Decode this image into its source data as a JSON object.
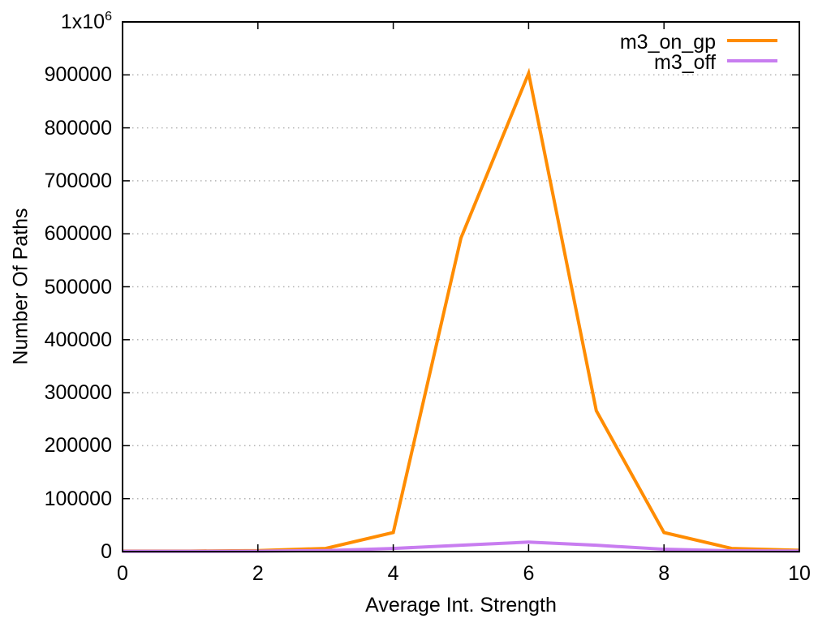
{
  "chart_data": {
    "type": "line",
    "title": "",
    "xlabel": "Average Int. Strength",
    "ylabel": "Number Of Paths",
    "xlim": [
      0,
      10
    ],
    "ylim": [
      0,
      1000000
    ],
    "grid": "horizontal-dotted",
    "legend_position": "top-right-inside",
    "x": [
      0,
      1,
      2,
      3,
      4,
      5,
      6,
      7,
      8,
      9,
      10
    ],
    "series": [
      {
        "name": "m3_on_gp",
        "color": "#ff8c00",
        "values": [
          1000,
          1000,
          2000,
          6000,
          36000,
          592000,
          903000,
          266000,
          36000,
          6000,
          2500
        ]
      },
      {
        "name": "m3_off",
        "color": "#c87df0",
        "values": [
          500,
          500,
          800,
          2000,
          6000,
          12000,
          18000,
          12000,
          4500,
          1500,
          1000
        ]
      }
    ],
    "xticks": [
      {
        "v": 0,
        "label": "0"
      },
      {
        "v": 2,
        "label": "2"
      },
      {
        "v": 4,
        "label": "4"
      },
      {
        "v": 6,
        "label": "6"
      },
      {
        "v": 8,
        "label": "8"
      },
      {
        "v": 10,
        "label": "10"
      }
    ],
    "yticks": [
      {
        "v": 0,
        "label": "0"
      },
      {
        "v": 100000,
        "label": "100000"
      },
      {
        "v": 200000,
        "label": "200000"
      },
      {
        "v": 300000,
        "label": "300000"
      },
      {
        "v": 400000,
        "label": "400000"
      },
      {
        "v": 500000,
        "label": "500000"
      },
      {
        "v": 600000,
        "label": "600000"
      },
      {
        "v": 700000,
        "label": "700000"
      },
      {
        "v": 800000,
        "label": "800000"
      },
      {
        "v": 900000,
        "label": "900000"
      },
      {
        "v": 1000000,
        "label": "1x10",
        "sup": "6"
      }
    ],
    "colors": {
      "background": "#ffffff",
      "axis": "#000000",
      "grid": "#b4b4b4",
      "text": "#000000"
    }
  }
}
